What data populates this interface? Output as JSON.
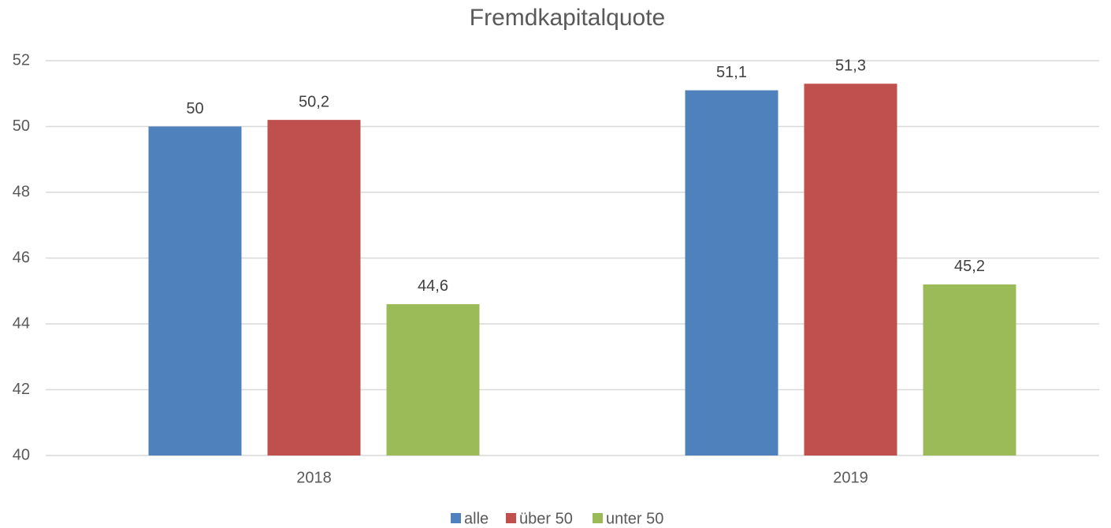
{
  "chart_data": {
    "type": "bar",
    "title": "Fremdkapitalquote",
    "categories": [
      "2018",
      "2019"
    ],
    "series": [
      {
        "name": "alle",
        "color": "#4f81bd",
        "values": [
          50,
          51.1
        ],
        "value_labels": [
          "50",
          "51,1"
        ]
      },
      {
        "name": "über 50",
        "color": "#c0504d",
        "values": [
          50.2,
          51.3
        ],
        "value_labels": [
          "50,2",
          "51,3"
        ]
      },
      {
        "name": "unter 50",
        "color": "#9bbb59",
        "values": [
          44.6,
          45.2
        ],
        "value_labels": [
          "44,6",
          "45,2"
        ]
      }
    ],
    "ylim": [
      40,
      52
    ],
    "yticks": [
      40,
      42,
      44,
      46,
      48,
      50,
      52
    ],
    "grid": true,
    "legend": "bottom"
  }
}
